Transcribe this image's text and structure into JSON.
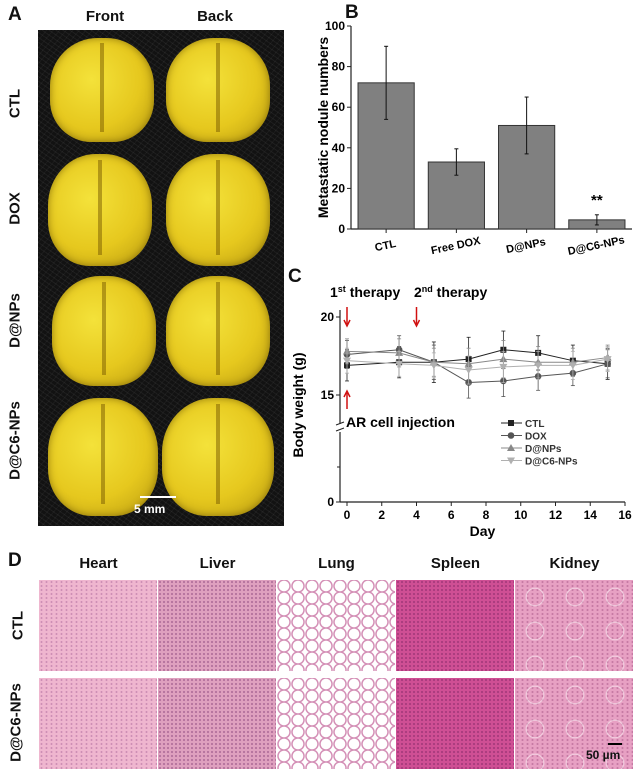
{
  "panels": {
    "a": "A",
    "b": "B",
    "c": "C",
    "d": "D"
  },
  "panel_a": {
    "columns": [
      "Front",
      "Back"
    ],
    "rows": [
      "CTL",
      "DOX",
      "D@NPs",
      "D@C6-NPs"
    ],
    "scale_bar": "5 mm"
  },
  "panel_d": {
    "columns": [
      "Heart",
      "Liver",
      "Lung",
      "Spleen",
      "Kidney"
    ],
    "rows": [
      "CTL",
      "D@C6-NPs"
    ],
    "scale_bar": "50 µm"
  },
  "chart_data": [
    {
      "type": "bar",
      "panel": "B",
      "ylabel": "Metastatic nodule numbers",
      "categories": [
        "CTL",
        "Free DOX",
        "D@NPs",
        "D@C6-NPs"
      ],
      "values": [
        72,
        33,
        51,
        4.5
      ],
      "errors": [
        18,
        6.5,
        14,
        2.5
      ],
      "annotations": [
        {
          "category": "D@C6-NPs",
          "text": "**"
        }
      ],
      "ylim": [
        0,
        100
      ],
      "yticks": [
        0,
        20,
        40,
        60,
        80,
        100
      ],
      "bar_color": "#808080"
    },
    {
      "type": "line",
      "panel": "C",
      "xlabel": "Day",
      "ylabel": "Body weight (g)",
      "xlim": [
        -0.7,
        16
      ],
      "xticks": [
        0,
        2,
        4,
        6,
        8,
        10,
        12,
        14,
        16
      ],
      "yticks": [
        0,
        15,
        20
      ],
      "y_axis_break": true,
      "x": [
        0,
        3,
        5,
        7,
        9,
        11,
        13,
        15
      ],
      "series": [
        {
          "name": "CTL",
          "marker": "square",
          "color": "#222222",
          "values": [
            16.9,
            17.1,
            17.1,
            17.3,
            17.9,
            17.7,
            17.2,
            17.0
          ],
          "errors": [
            1.0,
            1.0,
            1.3,
            1.4,
            1.2,
            1.1,
            1.0,
            1.0
          ]
        },
        {
          "name": "DOX",
          "marker": "circle",
          "color": "#555555",
          "values": [
            17.6,
            17.9,
            17.1,
            15.8,
            15.9,
            16.2,
            16.4,
            17.0
          ],
          "errors": [
            0.9,
            0.9,
            1.1,
            1.0,
            1.0,
            0.9,
            0.8,
            0.9
          ]
        },
        {
          "name": "D@NPs",
          "marker": "triangle-up",
          "color": "#888888",
          "values": [
            17.8,
            17.7,
            17.1,
            17.0,
            17.3,
            17.1,
            17.1,
            17.4
          ],
          "errors": [
            0.8,
            0.9,
            0.9,
            1.0,
            1.2,
            1.0,
            0.9,
            0.8
          ]
        },
        {
          "name": "D@C6-NPs",
          "marker": "triangle-down",
          "color": "#b0b0b0",
          "values": [
            17.2,
            17.0,
            16.9,
            16.6,
            16.8,
            16.9,
            16.9,
            17.3
          ],
          "errors": [
            0.8,
            0.8,
            0.8,
            0.9,
            1.0,
            0.9,
            0.9,
            0.8
          ]
        }
      ],
      "legend_position": "bottom-right",
      "annotations": [
        {
          "text": "1st therapy",
          "base": "1",
          "sup": "st",
          "rest": " therapy",
          "x": 0,
          "arrow": "down"
        },
        {
          "text": "2nd therapy",
          "base": "2",
          "sup": "nd",
          "rest": " therapy",
          "x": 4,
          "arrow": "down"
        },
        {
          "text": "AR cell injection",
          "x": 0,
          "arrow": "up"
        }
      ],
      "arrow_color": "#d01010"
    }
  ]
}
